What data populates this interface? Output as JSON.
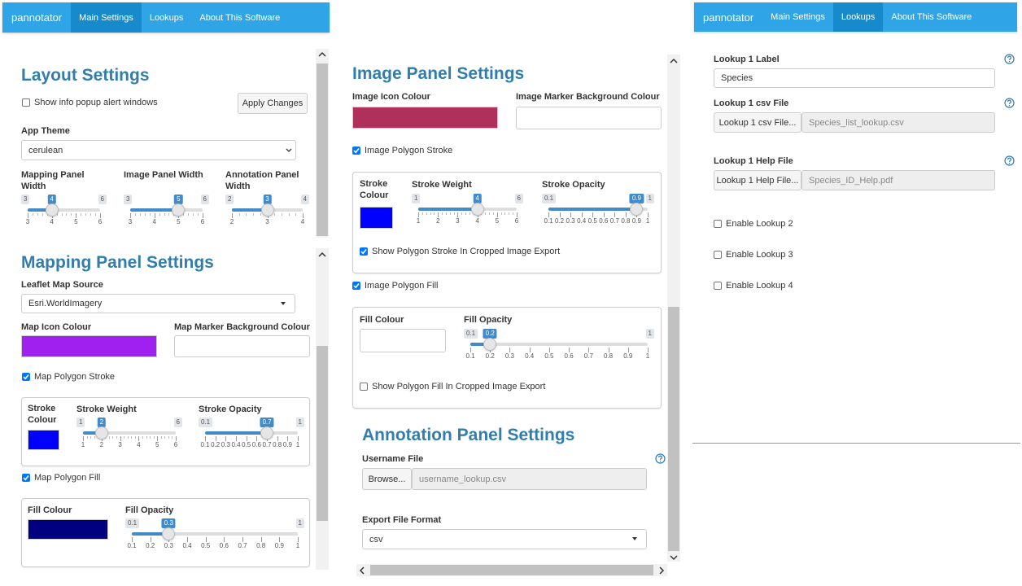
{
  "left": {
    "navbar": {
      "brand": "pannotator",
      "tabs": [
        "Main Settings",
        "Lookups",
        "About This Software"
      ],
      "active": 0
    },
    "layout_settings": {
      "title": "Layout Settings",
      "popup_checkbox": {
        "label": "Show info popup alert windows",
        "checked": false
      },
      "apply_button": "Apply Changes",
      "theme_label": "App Theme",
      "theme_value": "cerulean",
      "sliders": [
        {
          "label": "Mapping Panel Width",
          "min": 3,
          "max": 6,
          "value": 4,
          "ticks": [
            3,
            4,
            5,
            6
          ]
        },
        {
          "label": "Image Panel Width",
          "min": 3,
          "max": 6,
          "value": 5,
          "ticks": [
            3,
            4,
            5,
            6
          ]
        },
        {
          "label": "Annotation Panel Width",
          "min": 2,
          "max": 4,
          "value": 3,
          "ticks": [
            2,
            3,
            4
          ]
        }
      ]
    },
    "mapping_settings": {
      "title": "Mapping Panel Settings",
      "source_label": "Leaflet Map Source",
      "source_value": "Esri.WorldImagery",
      "icon_colour": {
        "label": "Map Icon Colour",
        "color": "#a020f0"
      },
      "marker_bg_label": "Map Marker Background Colour",
      "stroke_checkbox": {
        "label": "Map Polygon Stroke",
        "checked": true
      },
      "stroke_colour": {
        "label": "Stroke Colour",
        "color": "#0000ff"
      },
      "stroke_weight": {
        "label": "Stroke Weight",
        "min": 1,
        "max": 6,
        "value": 2,
        "ticks": [
          1,
          2,
          3,
          4,
          5,
          6
        ]
      },
      "stroke_opacity": {
        "label": "Stroke Opacity",
        "min": 0.1,
        "max": 1,
        "value": 0.7,
        "ticks": [
          0.1,
          0.2,
          0.3,
          0.4,
          0.5,
          0.6,
          0.7,
          0.8,
          0.9,
          1
        ]
      },
      "fill_checkbox": {
        "label": "Map Polygon Fill",
        "checked": true
      },
      "fill_colour": {
        "label": "Fill Colour",
        "color": "#000080"
      },
      "fill_opacity": {
        "label": "Fill Opacity",
        "min": 0.1,
        "max": 1,
        "value": 0.3,
        "ticks": [
          0.1,
          0.2,
          0.3,
          0.4,
          0.5,
          0.6,
          0.7,
          0.8,
          0.9,
          1
        ]
      }
    }
  },
  "middle": {
    "image_settings": {
      "title": "Image Panel Settings",
      "icon_colour": {
        "label": "Image Icon Colour",
        "color": "#b0305c"
      },
      "marker_bg_label": "Image Marker Background Colour",
      "stroke_checkbox": {
        "label": "Image Polygon Stroke",
        "checked": true
      },
      "stroke_colour": {
        "label": "Stroke Colour",
        "color": "#0000ff"
      },
      "stroke_weight": {
        "label": "Stroke Weight",
        "min": 1,
        "max": 6,
        "value": 4,
        "ticks": [
          1,
          2,
          3,
          4,
          5,
          6
        ]
      },
      "stroke_opacity": {
        "label": "Stroke Opacity",
        "min": 0.1,
        "max": 1,
        "value": 0.9,
        "ticks": [
          0.1,
          0.2,
          0.3,
          0.4,
          0.5,
          0.6,
          0.7,
          0.8,
          0.9,
          1
        ]
      },
      "export_stroke_checkbox": {
        "label": "Show Polygon Stroke In Cropped Image Export",
        "checked": true
      },
      "fill_checkbox": {
        "label": "Image Polygon Fill",
        "checked": true
      },
      "fill_colour_label": "Fill Colour",
      "fill_opacity": {
        "label": "Fill Opacity",
        "min": 0.1,
        "max": 1,
        "value": 0.2,
        "ticks": [
          0.1,
          0.2,
          0.3,
          0.4,
          0.5,
          0.6,
          0.7,
          0.8,
          0.9,
          1
        ]
      },
      "export_fill_checkbox": {
        "label": "Show Polygon Fill In Cropped Image Export",
        "checked": false
      }
    },
    "annotation_settings": {
      "title": "Annotation Panel Settings",
      "username_label": "Username File",
      "browse_button": "Browse...",
      "username_value": "username_lookup.csv",
      "export_label": "Export File Format",
      "export_value": "csv"
    }
  },
  "right": {
    "navbar": {
      "brand": "pannotator",
      "tabs": [
        "Main Settings",
        "Lookups",
        "About This Software"
      ],
      "active": 1
    },
    "lookup1": {
      "label_label": "Lookup 1 Label",
      "label_value": "Species",
      "csv_label": "Lookup 1 csv File",
      "csv_button": "Lookup 1 csv File...",
      "csv_value": "Species_list_lookup.csv",
      "help_label": "Lookup 1 Help File",
      "help_button": "Lookup 1 Help File...",
      "help_value": "Species_ID_Help.pdf"
    },
    "enable_checkboxes": [
      {
        "label": "Enable Lookup 2",
        "checked": false
      },
      {
        "label": "Enable Lookup 3",
        "checked": false
      },
      {
        "label": "Enable Lookup 4",
        "checked": false
      }
    ]
  }
}
